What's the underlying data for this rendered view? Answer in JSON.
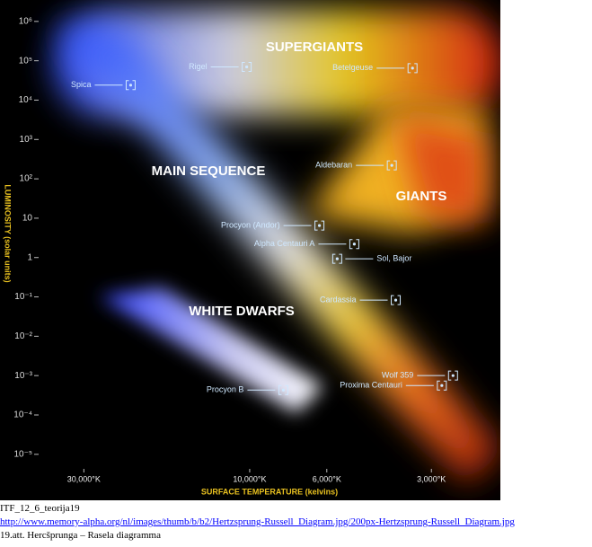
{
  "chart_data": {
    "type": "scatter",
    "log_x": true,
    "log_y": true,
    "x_label": "SURFACE TEMPERATURE (kelvins)",
    "y_label": "LUMINOSITY (solar units)",
    "xlim": [
      40000,
      1900
    ],
    "ylim": [
      5e-06,
      3500000
    ],
    "xticks": [
      {
        "value": 30000,
        "label": "30,000°K"
      },
      {
        "value": 10000,
        "label": "10,000°K"
      },
      {
        "value": 6000,
        "label": "6,000°K"
      },
      {
        "value": 3000,
        "label": "3,000°K"
      }
    ],
    "yticks": [
      {
        "value": 1000000,
        "label": "10⁶"
      },
      {
        "value": 100000,
        "label": "10⁵"
      },
      {
        "value": 10000,
        "label": "10⁴"
      },
      {
        "value": 1000,
        "label": "10³"
      },
      {
        "value": 100,
        "label": "10²"
      },
      10,
      1,
      {
        "value": 0.1,
        "label": "10⁻¹"
      },
      {
        "value": 0.01,
        "label": "10⁻²"
      },
      {
        "value": 0.001,
        "label": "10⁻³"
      },
      {
        "value": 0.0001,
        "label": "10⁻⁴"
      },
      {
        "value": 1e-05,
        "label": "10⁻⁵"
      }
    ],
    "regions": [
      "SUPERGIANTS",
      "MAIN SEQUENCE",
      "GIANTS",
      "WHITE DWARFS"
    ],
    "points": [
      {
        "label": "Rigel",
        "x": 10200,
        "y": 70000
      },
      {
        "label": "Betelgeuse",
        "x": 3400,
        "y": 65000
      },
      {
        "label": "Spica",
        "x": 22000,
        "y": 24000
      },
      {
        "label": "Aldebaran",
        "x": 3900,
        "y": 220
      },
      {
        "label": "Procyon (Andor)",
        "x": 6300,
        "y": 6.5
      },
      {
        "label": "Alpha Centauri A",
        "x": 5000,
        "y": 2.2
      },
      {
        "label": "Sol, Bajor",
        "x": 5600,
        "y": 0.93
      },
      {
        "label": "Cardassia",
        "x": 3800,
        "y": 0.083
      },
      {
        "label": "Wolf 359",
        "x": 2600,
        "y": 0.001
      },
      {
        "label": "Proxima Centauri",
        "x": 2800,
        "y": 0.00056
      },
      {
        "label": "Procyon B",
        "x": 8000,
        "y": 0.00043
      }
    ]
  },
  "caption": {
    "line1": "ITF_12_6_teorija19",
    "link": "http://www.memory-alpha.org/nl/images/thumb/b/b2/Hertzsprung-Russell_Diagram.jpg/200px-Hertzsprung-Russell_Diagram.jpg",
    "line3": "19.att. Hercšprunga – Rasela diagramma"
  }
}
